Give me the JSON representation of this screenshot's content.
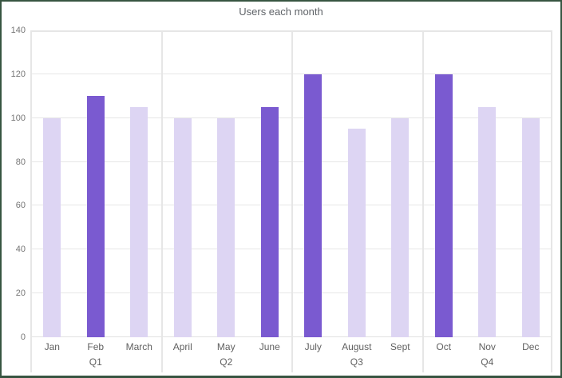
{
  "chart_data": {
    "type": "bar",
    "title": "Users each month",
    "categories": [
      "Jan",
      "Feb",
      "March",
      "April",
      "May",
      "June",
      "July",
      "August",
      "Sept",
      "Oct",
      "Nov",
      "Dec"
    ],
    "values": [
      100,
      110,
      105,
      100,
      100,
      105,
      120,
      95,
      100,
      120,
      105,
      100
    ],
    "highlighted": [
      false,
      true,
      false,
      false,
      false,
      true,
      true,
      false,
      false,
      true,
      false,
      false
    ],
    "groups": [
      "Q1",
      "Q2",
      "Q3",
      "Q4"
    ],
    "months_per_group": 3,
    "xlabel": "",
    "ylabel": "",
    "ylim": [
      0,
      140
    ],
    "yticks": [
      0,
      20,
      40,
      60,
      80,
      100,
      120,
      140
    ],
    "grid": true,
    "legend_position": "none"
  },
  "colors": {
    "bar_normal": "#ddd5f3",
    "bar_highlight": "#7a5ad0",
    "gridline": "#e6e6e6",
    "axis_line": "#e0e0e0",
    "tick_text": "#757575",
    "label_text": "#616161",
    "title_text": "#5f6368",
    "frame_border": "#375541",
    "background": "#ffffff"
  }
}
